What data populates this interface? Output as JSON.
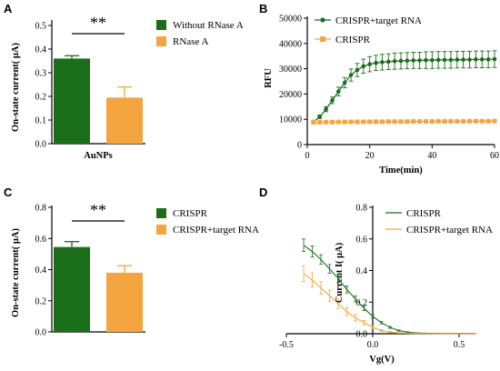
{
  "colors": {
    "green": "#1a6e1a",
    "orange": "#f5a540",
    "green_light": "#3c9a3c",
    "orange_light": "#f8b86a"
  },
  "panels": {
    "a": "A",
    "b": "B",
    "c": "C",
    "d": "D"
  },
  "chart_data": [
    {
      "panel": "A",
      "type": "bar",
      "ylabel": "On-state current( μA)",
      "categories": [
        "AuNPs"
      ],
      "ylim": [
        0,
        0.5
      ],
      "yticks": [
        "0.0",
        "0.1",
        "0.2",
        "0.3",
        "0.4",
        "0.5"
      ],
      "series": [
        {
          "name": "Without RNase A",
          "values": [
            0.36
          ],
          "errors": [
            0.012
          ]
        },
        {
          "name": "RNase A",
          "values": [
            0.195
          ],
          "errors": [
            0.045
          ]
        }
      ],
      "annotation": "**"
    },
    {
      "panel": "B",
      "type": "line",
      "xlabel": "Time(min)",
      "ylabel": "RFU",
      "xlim": [
        0,
        60
      ],
      "ylim": [
        0,
        50000
      ],
      "xticks": [
        "0",
        "20",
        "40",
        "60"
      ],
      "yticks": [
        "0",
        "10000",
        "20000",
        "30000",
        "40000",
        "50000"
      ],
      "series": [
        {
          "name": "CRISPR+target RNA",
          "x": [
            2,
            4,
            6,
            8,
            10,
            12,
            14,
            16,
            18,
            20,
            22,
            24,
            26,
            28,
            30,
            32,
            34,
            36,
            38,
            40,
            42,
            44,
            46,
            48,
            50,
            52,
            54,
            56,
            58,
            60
          ],
          "y": [
            9000,
            11000,
            14000,
            17500,
            21000,
            24500,
            27500,
            29500,
            31000,
            31800,
            32300,
            32600,
            32800,
            33000,
            33100,
            33200,
            33300,
            33300,
            33400,
            33400,
            33500,
            33500,
            33500,
            33600,
            33600,
            33600,
            33700,
            33700,
            33700,
            33800
          ],
          "err": [
            500,
            700,
            1000,
            1300,
            1700,
            2000,
            2400,
            2600,
            2800,
            3000,
            3000,
            3100,
            3100,
            3200,
            3200,
            3200,
            3200,
            3200,
            3300,
            3300,
            3300,
            3300,
            3300,
            3300,
            3300,
            3300,
            3300,
            3300,
            3300,
            3300
          ]
        },
        {
          "name": "CRISPR",
          "x": [
            2,
            4,
            6,
            8,
            10,
            12,
            14,
            16,
            18,
            20,
            22,
            24,
            26,
            28,
            30,
            32,
            34,
            36,
            38,
            40,
            42,
            44,
            46,
            48,
            50,
            52,
            54,
            56,
            58,
            60
          ],
          "y": [
            8800,
            8850,
            8900,
            8900,
            8950,
            8950,
            9000,
            9000,
            9000,
            9050,
            9050,
            9050,
            9100,
            9100,
            9100,
            9100,
            9150,
            9150,
            9150,
            9150,
            9200,
            9200,
            9200,
            9200,
            9200,
            9250,
            9250,
            9250,
            9250,
            9300
          ],
          "err": [
            300,
            300,
            300,
            300,
            300,
            300,
            300,
            300,
            300,
            300,
            300,
            300,
            300,
            300,
            300,
            300,
            300,
            300,
            300,
            300,
            300,
            300,
            300,
            300,
            300,
            300,
            300,
            300,
            300,
            300
          ]
        }
      ]
    },
    {
      "panel": "C",
      "type": "bar",
      "ylabel": "On-state current( μA)",
      "categories": [
        ""
      ],
      "ylim": [
        0,
        0.8
      ],
      "yticks": [
        "0.0",
        "0.2",
        "0.4",
        "0.6",
        "0.8"
      ],
      "series": [
        {
          "name": "CRISPR",
          "values": [
            0.545
          ],
          "errors": [
            0.035
          ]
        },
        {
          "name": "CRISPR+target RNA",
          "values": [
            0.38
          ],
          "errors": [
            0.045
          ]
        }
      ],
      "annotation": "**"
    },
    {
      "panel": "D",
      "type": "line",
      "xlabel": "Vg(V)",
      "ylabel": "Current I( μA)",
      "xlim": [
        -0.5,
        0.6
      ],
      "ylim": [
        0,
        0.8
      ],
      "xticks": [
        "-0.5",
        "0.0",
        "0.5"
      ],
      "yticks": [
        "0.0",
        "0.2",
        "0.4",
        "0.6",
        "0.8"
      ],
      "series": [
        {
          "name": "CRISPR",
          "x": [
            -0.4,
            -0.35,
            -0.3,
            -0.25,
            -0.2,
            -0.15,
            -0.1,
            -0.05,
            0.0,
            0.05,
            0.1,
            0.15,
            0.2,
            0.25,
            0.3,
            0.35,
            0.4,
            0.45,
            0.5,
            0.55,
            0.6
          ],
          "y": [
            0.56,
            0.52,
            0.47,
            0.41,
            0.35,
            0.28,
            0.22,
            0.16,
            0.11,
            0.07,
            0.04,
            0.02,
            0.01,
            0.005,
            0.003,
            0.002,
            0.001,
            0.001,
            0.001,
            0.001,
            0.0
          ],
          "err": [
            0.04,
            0.035,
            0.03,
            0.028,
            0.025,
            0.022,
            0.018,
            0.014,
            0.01,
            0.008,
            0.006,
            0.004,
            0.002,
            0.001,
            0.001,
            0.0,
            0.0,
            0.0,
            0.0,
            0.0,
            0.0
          ]
        },
        {
          "name": "CRISPR+target RNA",
          "x": [
            -0.4,
            -0.35,
            -0.3,
            -0.25,
            -0.2,
            -0.15,
            -0.1,
            -0.05,
            0.0,
            0.05,
            0.1,
            0.15,
            0.2,
            0.25,
            0.3,
            0.35,
            0.4,
            0.45,
            0.5,
            0.55,
            0.6
          ],
          "y": [
            0.38,
            0.34,
            0.29,
            0.24,
            0.19,
            0.14,
            0.1,
            0.07,
            0.04,
            0.02,
            0.01,
            0.005,
            0.003,
            0.001,
            0.001,
            0.0,
            0.0,
            0.0,
            0.0,
            0.0,
            0.0
          ],
          "err": [
            0.05,
            0.045,
            0.04,
            0.035,
            0.03,
            0.025,
            0.02,
            0.014,
            0.01,
            0.006,
            0.004,
            0.002,
            0.001,
            0.0,
            0.0,
            0.0,
            0.0,
            0.0,
            0.0,
            0.0,
            0.0
          ]
        }
      ]
    }
  ]
}
